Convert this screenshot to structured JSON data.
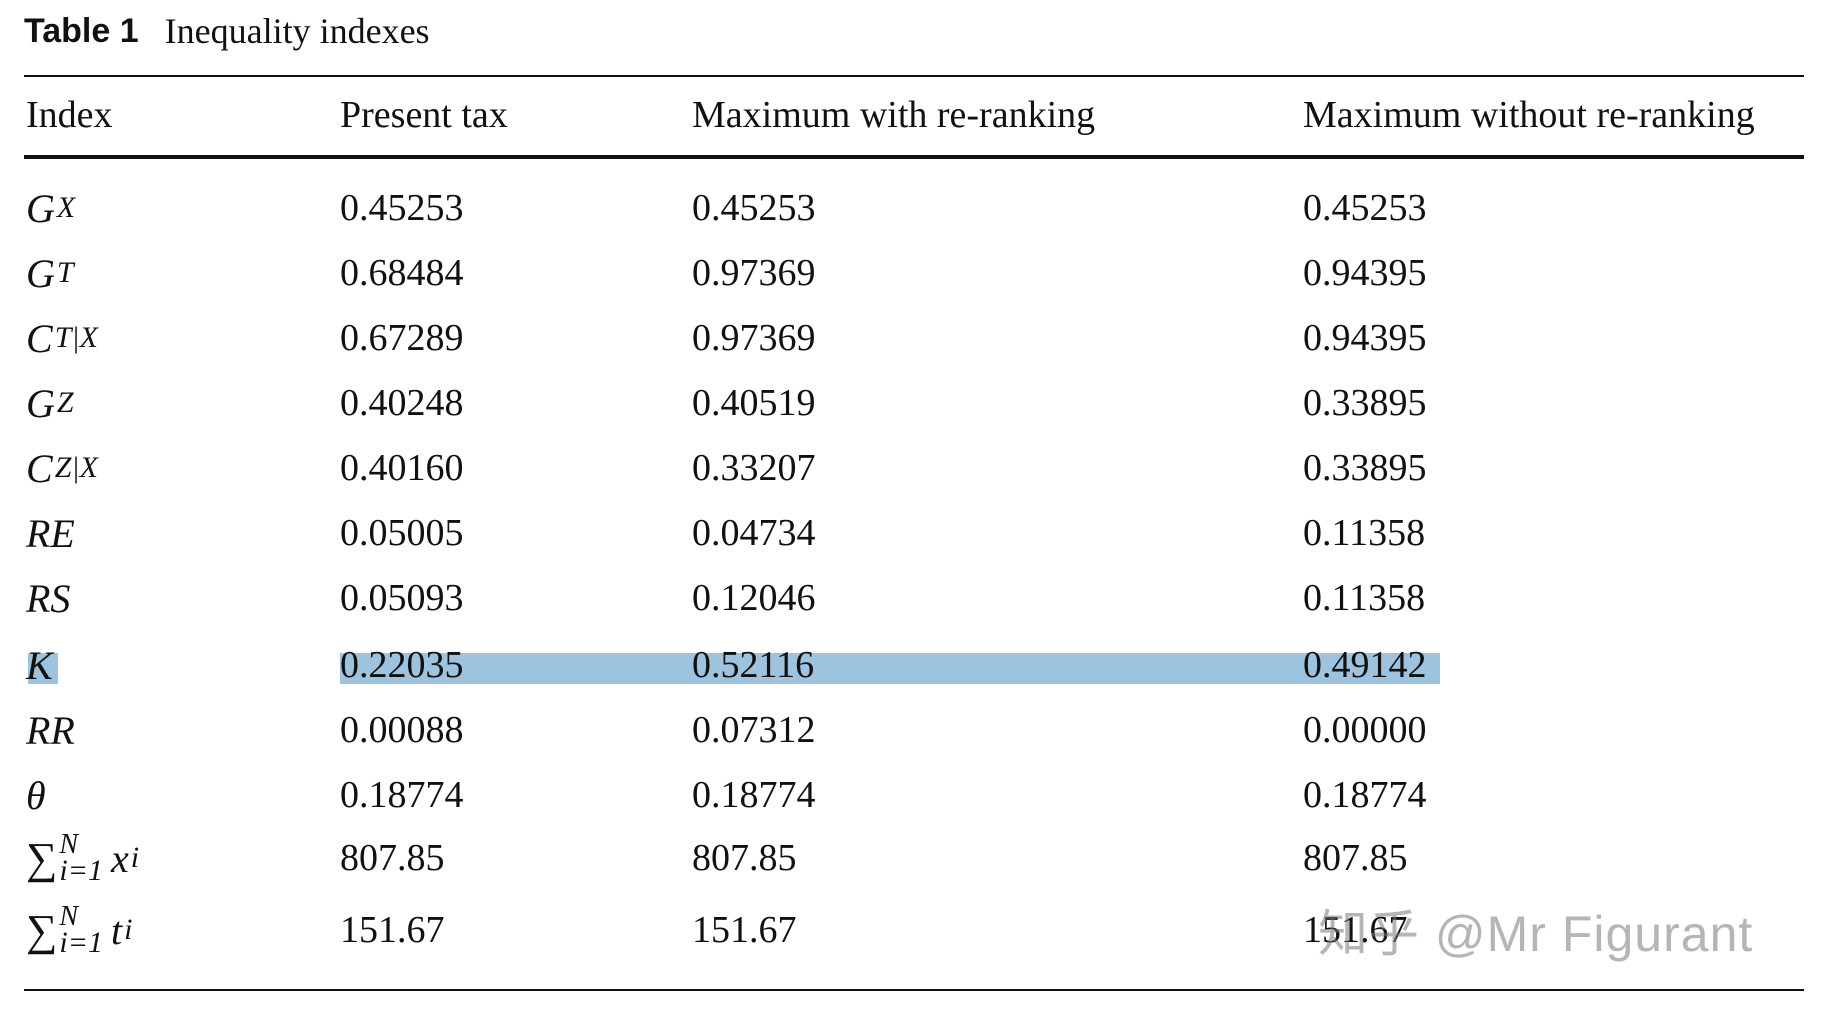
{
  "caption": {
    "number": "Table 1",
    "title": "Inequality indexes"
  },
  "headers": [
    "Index",
    "Present tax",
    "Maximum with re-ranking",
    "Maximum without re-ranking"
  ],
  "rows": [
    {
      "index": {
        "base": "G",
        "sub": "X"
      },
      "values": [
        "0.45253",
        "0.45253",
        "0.45253"
      ]
    },
    {
      "index": {
        "base": "G",
        "sub": "T"
      },
      "values": [
        "0.68484",
        "0.97369",
        "0.94395"
      ]
    },
    {
      "index": {
        "base": "C",
        "sub": "T|X"
      },
      "values": [
        "0.67289",
        "0.97369",
        "0.94395"
      ]
    },
    {
      "index": {
        "base": "G",
        "sub": "Z"
      },
      "values": [
        "0.40248",
        "0.40519",
        "0.33895"
      ]
    },
    {
      "index": {
        "base": "C",
        "sub": "Z|X"
      },
      "values": [
        "0.40160",
        "0.33207",
        "0.33895"
      ]
    },
    {
      "index": {
        "base": "RE",
        "sub": ""
      },
      "values": [
        "0.05005",
        "0.04734",
        "0.11358"
      ]
    },
    {
      "index": {
        "base": "RS",
        "sub": ""
      },
      "values": [
        "0.05093",
        "0.12046",
        "0.11358"
      ]
    },
    {
      "index": {
        "base": "K",
        "sub": ""
      },
      "values": [
        "0.22035",
        "0.52116",
        "0.49142"
      ],
      "highlighted": true
    },
    {
      "index": {
        "base": "RR",
        "sub": ""
      },
      "values": [
        "0.00088",
        "0.07312",
        "0.00000"
      ]
    },
    {
      "index": {
        "base": "θ",
        "sub": ""
      },
      "values": [
        "0.18774",
        "0.18774",
        "0.18774"
      ]
    },
    {
      "index": {
        "sum_sup": "N",
        "sum_sub": "i=1",
        "var": "x",
        "var_sub": "i"
      },
      "values": [
        "807.85",
        "807.85",
        "807.85"
      ]
    },
    {
      "index": {
        "sum_sup": "N",
        "sum_sub": "i=1",
        "var": "t",
        "var_sub": "i"
      },
      "values": [
        "151.67",
        "151.67",
        "151.67"
      ]
    }
  ],
  "colors": {
    "highlight": "#9dc3de",
    "rule": "#111111"
  },
  "watermark": "知乎 @Mr Figurant"
}
